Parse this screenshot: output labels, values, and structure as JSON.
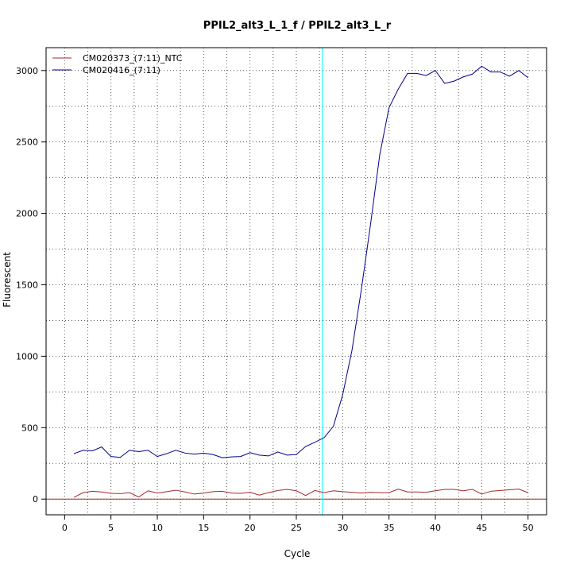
{
  "chart_data": {
    "type": "line",
    "title": "PPIL2_alt3_L_1_f / PPIL2_alt3_L_r",
    "xlabel": "Cycle",
    "ylabel": "Fluorescent",
    "xlim": [
      -2,
      52
    ],
    "ylim": [
      -110,
      3160
    ],
    "x_ticks": [
      "0",
      "5",
      "10",
      "15",
      "20",
      "25",
      "30",
      "35",
      "40",
      "45",
      "50"
    ],
    "y_ticks": [
      "0",
      "500",
      "1000",
      "1500",
      "2000",
      "2500",
      "3000"
    ],
    "grid": true,
    "legend_position": "top-left",
    "threshold_line": {
      "y": 0,
      "color": "#a52a2a"
    },
    "cycle_marker": {
      "x": 27.8,
      "color": "#00ffff"
    },
    "x": [
      1,
      2,
      3,
      4,
      5,
      6,
      7,
      8,
      9,
      10,
      11,
      12,
      13,
      14,
      15,
      16,
      17,
      18,
      19,
      20,
      21,
      22,
      23,
      24,
      25,
      26,
      27,
      28,
      29,
      30,
      31,
      32,
      33,
      34,
      35,
      36,
      37,
      38,
      39,
      40,
      41,
      42,
      43,
      44,
      45,
      46,
      47,
      48,
      49,
      50
    ],
    "series": [
      {
        "name": "CM020373_(7:11)_NTC",
        "color": "#a52a2a",
        "values": [
          12,
          45,
          55,
          50,
          40,
          38,
          45,
          15,
          58,
          42,
          52,
          62,
          50,
          35,
          42,
          52,
          55,
          42,
          40,
          48,
          28,
          45,
          60,
          68,
          58,
          25,
          60,
          45,
          58,
          52,
          48,
          42,
          48,
          45,
          45,
          70,
          50,
          50,
          48,
          58,
          68,
          68,
          58,
          68,
          35,
          55,
          60,
          65,
          70,
          45
        ]
      },
      {
        "name": "CM020416_(7:11)",
        "color": "#00008b",
        "values": [
          318,
          342,
          338,
          365,
          298,
          292,
          342,
          332,
          342,
          298,
          318,
          342,
          322,
          315,
          322,
          312,
          290,
          295,
          298,
          325,
          308,
          302,
          330,
          308,
          312,
          368,
          398,
          430,
          510,
          730,
          1040,
          1460,
          1920,
          2410,
          2740,
          2870,
          2980,
          2980,
          2965,
          3000,
          2910,
          2925,
          2955,
          2975,
          3030,
          2990,
          2990,
          2960,
          3000,
          2950
        ]
      }
    ]
  }
}
